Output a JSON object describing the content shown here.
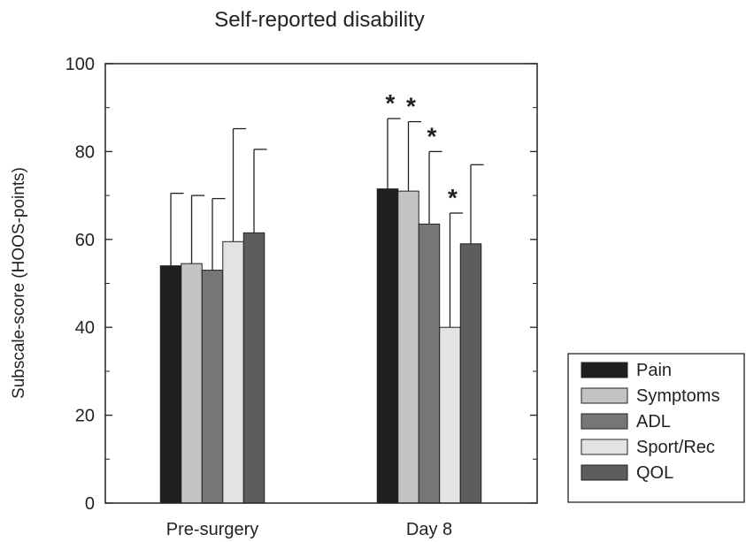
{
  "chart_data": {
    "type": "bar",
    "title": "Self-reported disability",
    "ylabel": "Subscale-score (HOOS-points)",
    "xlabel": "",
    "ylim": [
      0,
      100
    ],
    "yticks": [
      0,
      20,
      40,
      60,
      80,
      100
    ],
    "categories": [
      "Pre-surgery",
      "Day 8"
    ],
    "series": [
      {
        "name": "Pain",
        "color": "#1f1f1f",
        "values": [
          54,
          71.5
        ],
        "error_upper": [
          70.5,
          87.5
        ],
        "significant": [
          false,
          true
        ]
      },
      {
        "name": "Symptoms",
        "color": "#c3c3c3",
        "values": [
          54.5,
          71
        ],
        "error_upper": [
          70,
          86.8
        ],
        "significant": [
          false,
          true
        ]
      },
      {
        "name": "ADL",
        "color": "#767676",
        "values": [
          53,
          63.5
        ],
        "error_upper": [
          69.3,
          80
        ],
        "significant": [
          false,
          true
        ]
      },
      {
        "name": "Sport/Rec",
        "color": "#e3e3e3",
        "values": [
          59.5,
          40
        ],
        "error_upper": [
          85.2,
          66
        ],
        "significant": [
          false,
          true
        ]
      },
      {
        "name": "QOL",
        "color": "#5d5d5d",
        "values": [
          61.5,
          59
        ],
        "error_upper": [
          80.5,
          77
        ],
        "significant": [
          false,
          false
        ]
      }
    ],
    "significance_marker": "*",
    "legend_position": "right",
    "grid": false
  }
}
